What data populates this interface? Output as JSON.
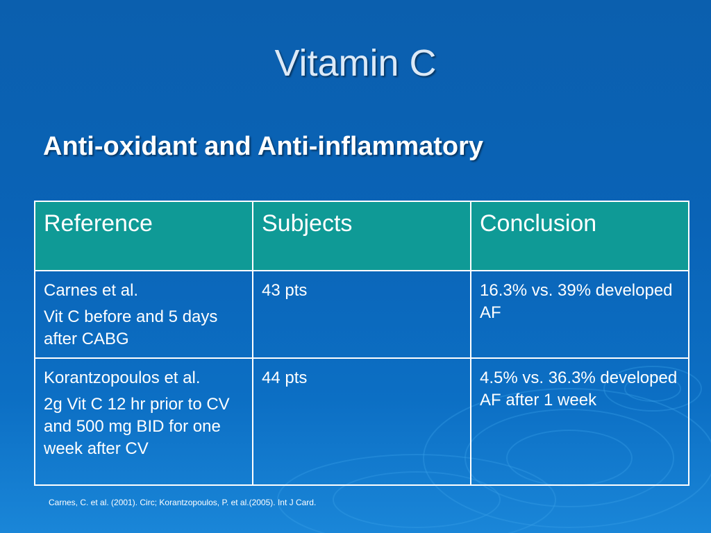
{
  "slide": {
    "title": "Vitamin C",
    "subtitle": "Anti-oxidant and Anti-inflammatory"
  },
  "table": {
    "headers": [
      "Reference",
      "Subjects",
      "Conclusion"
    ],
    "rows": [
      {
        "reference": [
          "Carnes et al.",
          "Vit C before and 5 days after CABG"
        ],
        "subjects": "43 pts",
        "conclusion": "16.3% vs. 39% developed AF"
      },
      {
        "reference": [
          "Korantzopoulos et al.",
          "2g Vit C 12 hr prior to CV and 500 mg BID for one week after CV"
        ],
        "subjects": "44 pts",
        "conclusion": "4.5% vs. 36.3% developed AF after 1 week"
      }
    ],
    "header_color": "#0f9a96"
  },
  "footnote": "Carnes, C. et al. (2001). Circ; Korantzopoulos, P. et al.(2005). Int J Card."
}
